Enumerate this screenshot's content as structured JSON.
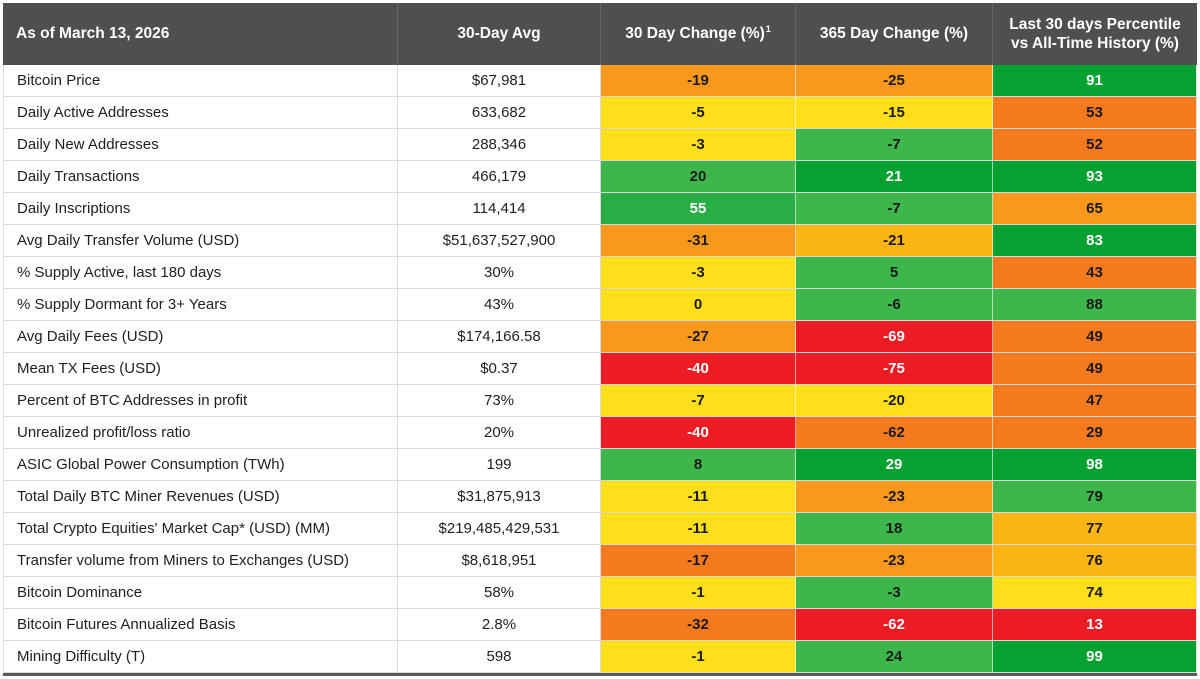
{
  "chart_data": {
    "type": "table",
    "title": "As of March 13, 2026",
    "columns": [
      "As of March 13, 2026",
      "30-Day Avg",
      "30 Day Change (%)",
      "365 Day Change (%)",
      "Last 30 days Percentile vs All-Time History (%)"
    ],
    "col30_footnote_marker": "1",
    "palette": {
      "red": "#EB1C24",
      "orange": "#F5791D",
      "amber": "#F8991D",
      "lightamber": "#FBB515",
      "yellow": "#FFDF1A",
      "mgreen": "#3DB64B",
      "green2": "#2BAD45",
      "dgreen": "#06A231",
      "header_bg": "#4F4F51",
      "row_border": "#D9D9D9",
      "bottom_bar": "#58595B",
      "text_dark": "#1A1A1A",
      "text_light": "#FFFFFF"
    },
    "light_text_colors": [
      "red",
      "dgreen",
      "green2"
    ],
    "rows": [
      {
        "label": "Bitcoin Price",
        "avg": "$67,981",
        "c30": {
          "v": "-19",
          "color": "amber"
        },
        "c365": {
          "v": "-25",
          "color": "amber"
        },
        "pct": {
          "v": "91",
          "color": "dgreen"
        }
      },
      {
        "label": "Daily Active Addresses",
        "avg": "633,682",
        "c30": {
          "v": "-5",
          "color": "yellow"
        },
        "c365": {
          "v": "-15",
          "color": "yellow"
        },
        "pct": {
          "v": "53",
          "color": "orange"
        }
      },
      {
        "label": "Daily New Addresses",
        "avg": "288,346",
        "c30": {
          "v": "-3",
          "color": "yellow"
        },
        "c365": {
          "v": "-7",
          "color": "mgreen"
        },
        "pct": {
          "v": "52",
          "color": "orange"
        }
      },
      {
        "label": "Daily Transactions",
        "avg": "466,179",
        "c30": {
          "v": "20",
          "color": "mgreen"
        },
        "c365": {
          "v": "21",
          "color": "dgreen"
        },
        "pct": {
          "v": "93",
          "color": "dgreen"
        }
      },
      {
        "label": "Daily Inscriptions",
        "avg": "114,414",
        "c30": {
          "v": "55",
          "color": "green2"
        },
        "c365": {
          "v": "-7",
          "color": "mgreen"
        },
        "pct": {
          "v": "65",
          "color": "amber"
        }
      },
      {
        "label": "Avg Daily Transfer Volume (USD)",
        "avg": "$51,637,527,900",
        "c30": {
          "v": "-31",
          "color": "amber"
        },
        "c365": {
          "v": "-21",
          "color": "lightamber"
        },
        "pct": {
          "v": "83",
          "color": "dgreen"
        }
      },
      {
        "label": "% Supply Active, last 180 days",
        "avg": "30%",
        "c30": {
          "v": "-3",
          "color": "yellow"
        },
        "c365": {
          "v": "5",
          "color": "mgreen"
        },
        "pct": {
          "v": "43",
          "color": "orange"
        }
      },
      {
        "label": "% Supply Dormant for 3+ Years",
        "avg": "43%",
        "c30": {
          "v": "0",
          "color": "yellow"
        },
        "c365": {
          "v": "-6",
          "color": "mgreen"
        },
        "pct": {
          "v": "88",
          "color": "mgreen"
        }
      },
      {
        "label": "Avg Daily Fees (USD)",
        "avg": "$174,166.58",
        "c30": {
          "v": "-27",
          "color": "amber"
        },
        "c365": {
          "v": "-69",
          "color": "red"
        },
        "pct": {
          "v": "49",
          "color": "orange"
        }
      },
      {
        "label": "Mean TX Fees (USD)",
        "avg": "$0.37",
        "c30": {
          "v": "-40",
          "color": "red"
        },
        "c365": {
          "v": "-75",
          "color": "red"
        },
        "pct": {
          "v": "49",
          "color": "orange"
        }
      },
      {
        "label": "Percent of BTC Addresses in profit",
        "avg": "73%",
        "c30": {
          "v": "-7",
          "color": "yellow"
        },
        "c365": {
          "v": "-20",
          "color": "yellow"
        },
        "pct": {
          "v": "47",
          "color": "orange"
        }
      },
      {
        "label": "Unrealized profit/loss ratio",
        "avg": "20%",
        "c30": {
          "v": "-40",
          "color": "red"
        },
        "c365": {
          "v": "-62",
          "color": "orange"
        },
        "pct": {
          "v": "29",
          "color": "orange"
        }
      },
      {
        "label": "ASIC Global Power Consumption (TWh)",
        "avg": "199",
        "c30": {
          "v": "8",
          "color": "mgreen"
        },
        "c365": {
          "v": "29",
          "color": "dgreen"
        },
        "pct": {
          "v": "98",
          "color": "dgreen"
        }
      },
      {
        "label": "Total Daily BTC Miner Revenues (USD)",
        "avg": "$31,875,913",
        "c30": {
          "v": "-11",
          "color": "yellow"
        },
        "c365": {
          "v": "-23",
          "color": "amber"
        },
        "pct": {
          "v": "79",
          "color": "mgreen"
        }
      },
      {
        "label": "Total Crypto Equities' Market Cap* (USD) (MM)",
        "avg": "$219,485,429,531",
        "c30": {
          "v": "-11",
          "color": "yellow"
        },
        "c365": {
          "v": "18",
          "color": "mgreen"
        },
        "pct": {
          "v": "77",
          "color": "lightamber"
        }
      },
      {
        "label": "Transfer volume from Miners to Exchanges (USD)",
        "avg": "$8,618,951",
        "c30": {
          "v": "-17",
          "color": "orange"
        },
        "c365": {
          "v": "-23",
          "color": "amber"
        },
        "pct": {
          "v": "76",
          "color": "lightamber"
        }
      },
      {
        "label": "Bitcoin Dominance",
        "avg": "58%",
        "c30": {
          "v": "-1",
          "color": "yellow"
        },
        "c365": {
          "v": "-3",
          "color": "mgreen"
        },
        "pct": {
          "v": "74",
          "color": "yellow"
        }
      },
      {
        "label": "Bitcoin Futures Annualized Basis",
        "avg": "2.8%",
        "c30": {
          "v": "-32",
          "color": "orange"
        },
        "c365": {
          "v": "-62",
          "color": "red"
        },
        "pct": {
          "v": "13",
          "color": "red"
        }
      },
      {
        "label": "Mining Difficulty (T)",
        "avg": "598",
        "c30": {
          "v": "-1",
          "color": "yellow"
        },
        "c365": {
          "v": "24",
          "color": "mgreen"
        },
        "pct": {
          "v": "99",
          "color": "dgreen"
        }
      }
    ]
  }
}
